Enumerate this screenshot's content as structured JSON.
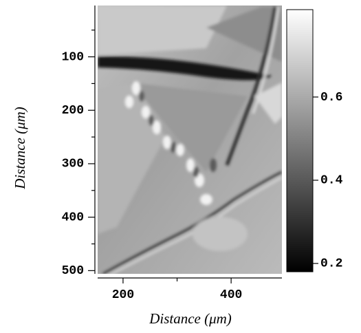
{
  "chart_data": {
    "type": "image",
    "x_label": "Distance (μm)",
    "y_label": "Distance (μm)",
    "xlim": [
      153,
      494
    ],
    "xticks": [
      200,
      400
    ],
    "xminor": [
      300
    ],
    "ylim": [
      4,
      506
    ],
    "y_inverted": true,
    "yticks": [
      100,
      200,
      300,
      400,
      500
    ],
    "yminor": [
      50,
      150,
      250,
      350,
      450
    ],
    "colormap": "gray",
    "clim": [
      0.18,
      0.81
    ],
    "cticks": [
      0.2,
      0.4,
      0.6
    ]
  }
}
